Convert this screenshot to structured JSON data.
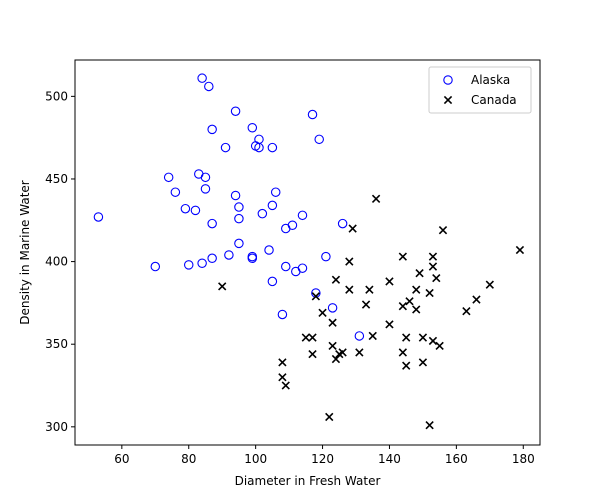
{
  "chart_data": {
    "type": "scatter",
    "title": "",
    "xlabel": "Diameter in Fresh Water",
    "ylabel": "Density in Marine Water",
    "xlim": [
      46,
      185
    ],
    "ylim": [
      289,
      522
    ],
    "xticks": [
      60,
      80,
      100,
      120,
      140,
      160,
      180
    ],
    "yticks": [
      300,
      350,
      400,
      450,
      500
    ],
    "grid": false,
    "legend_position": "top-right",
    "series": [
      {
        "name": "Alaska",
        "marker": "circle",
        "color": "#0000ff",
        "points": [
          [
            53,
            427
          ],
          [
            70,
            397
          ],
          [
            74,
            451
          ],
          [
            76,
            442
          ],
          [
            79,
            432
          ],
          [
            80,
            398
          ],
          [
            82,
            431
          ],
          [
            83,
            453
          ],
          [
            84,
            511
          ],
          [
            84,
            399
          ],
          [
            85,
            451
          ],
          [
            85,
            444
          ],
          [
            86,
            506
          ],
          [
            87,
            480
          ],
          [
            87,
            423
          ],
          [
            87,
            402
          ],
          [
            91,
            469
          ],
          [
            92,
            404
          ],
          [
            94,
            491
          ],
          [
            94,
            440
          ],
          [
            95,
            433
          ],
          [
            95,
            426
          ],
          [
            95,
            411
          ],
          [
            99,
            481
          ],
          [
            99,
            403
          ],
          [
            99,
            402
          ],
          [
            100,
            470
          ],
          [
            101,
            474
          ],
          [
            101,
            469
          ],
          [
            102,
            429
          ],
          [
            104,
            407
          ],
          [
            105,
            469
          ],
          [
            105,
            434
          ],
          [
            105,
            388
          ],
          [
            106,
            442
          ],
          [
            108,
            368
          ],
          [
            109,
            420
          ],
          [
            109,
            397
          ],
          [
            111,
            422
          ],
          [
            112,
            394
          ],
          [
            114,
            428
          ],
          [
            114,
            396
          ],
          [
            117,
            489
          ],
          [
            118,
            381
          ],
          [
            119,
            474
          ],
          [
            121,
            403
          ],
          [
            123,
            372
          ],
          [
            126,
            423
          ],
          [
            131,
            355
          ]
        ]
      },
      {
        "name": "Canada",
        "marker": "x",
        "color": "#000000",
        "points": [
          [
            90,
            385
          ],
          [
            108,
            339
          ],
          [
            108,
            330
          ],
          [
            109,
            325
          ],
          [
            115,
            354
          ],
          [
            117,
            354
          ],
          [
            117,
            344
          ],
          [
            118,
            379
          ],
          [
            120,
            369
          ],
          [
            122,
            306
          ],
          [
            123,
            363
          ],
          [
            123,
            349
          ],
          [
            124,
            389
          ],
          [
            124,
            341
          ],
          [
            125,
            344
          ],
          [
            126,
            345
          ],
          [
            128,
            383
          ],
          [
            128,
            400
          ],
          [
            129,
            420
          ],
          [
            131,
            345
          ],
          [
            133,
            374
          ],
          [
            134,
            383
          ],
          [
            135,
            355
          ],
          [
            136,
            438
          ],
          [
            140,
            362
          ],
          [
            140,
            388
          ],
          [
            144,
            403
          ],
          [
            144,
            373
          ],
          [
            144,
            345
          ],
          [
            145,
            337
          ],
          [
            145,
            354
          ],
          [
            146,
            376
          ],
          [
            148,
            383
          ],
          [
            148,
            371
          ],
          [
            149,
            393
          ],
          [
            150,
            339
          ],
          [
            150,
            354
          ],
          [
            152,
            381
          ],
          [
            152,
            301
          ],
          [
            153,
            403
          ],
          [
            153,
            397
          ],
          [
            153,
            352
          ],
          [
            154,
            390
          ],
          [
            155,
            349
          ],
          [
            156,
            419
          ],
          [
            163,
            370
          ],
          [
            166,
            377
          ],
          [
            170,
            386
          ],
          [
            179,
            407
          ]
        ]
      }
    ]
  }
}
